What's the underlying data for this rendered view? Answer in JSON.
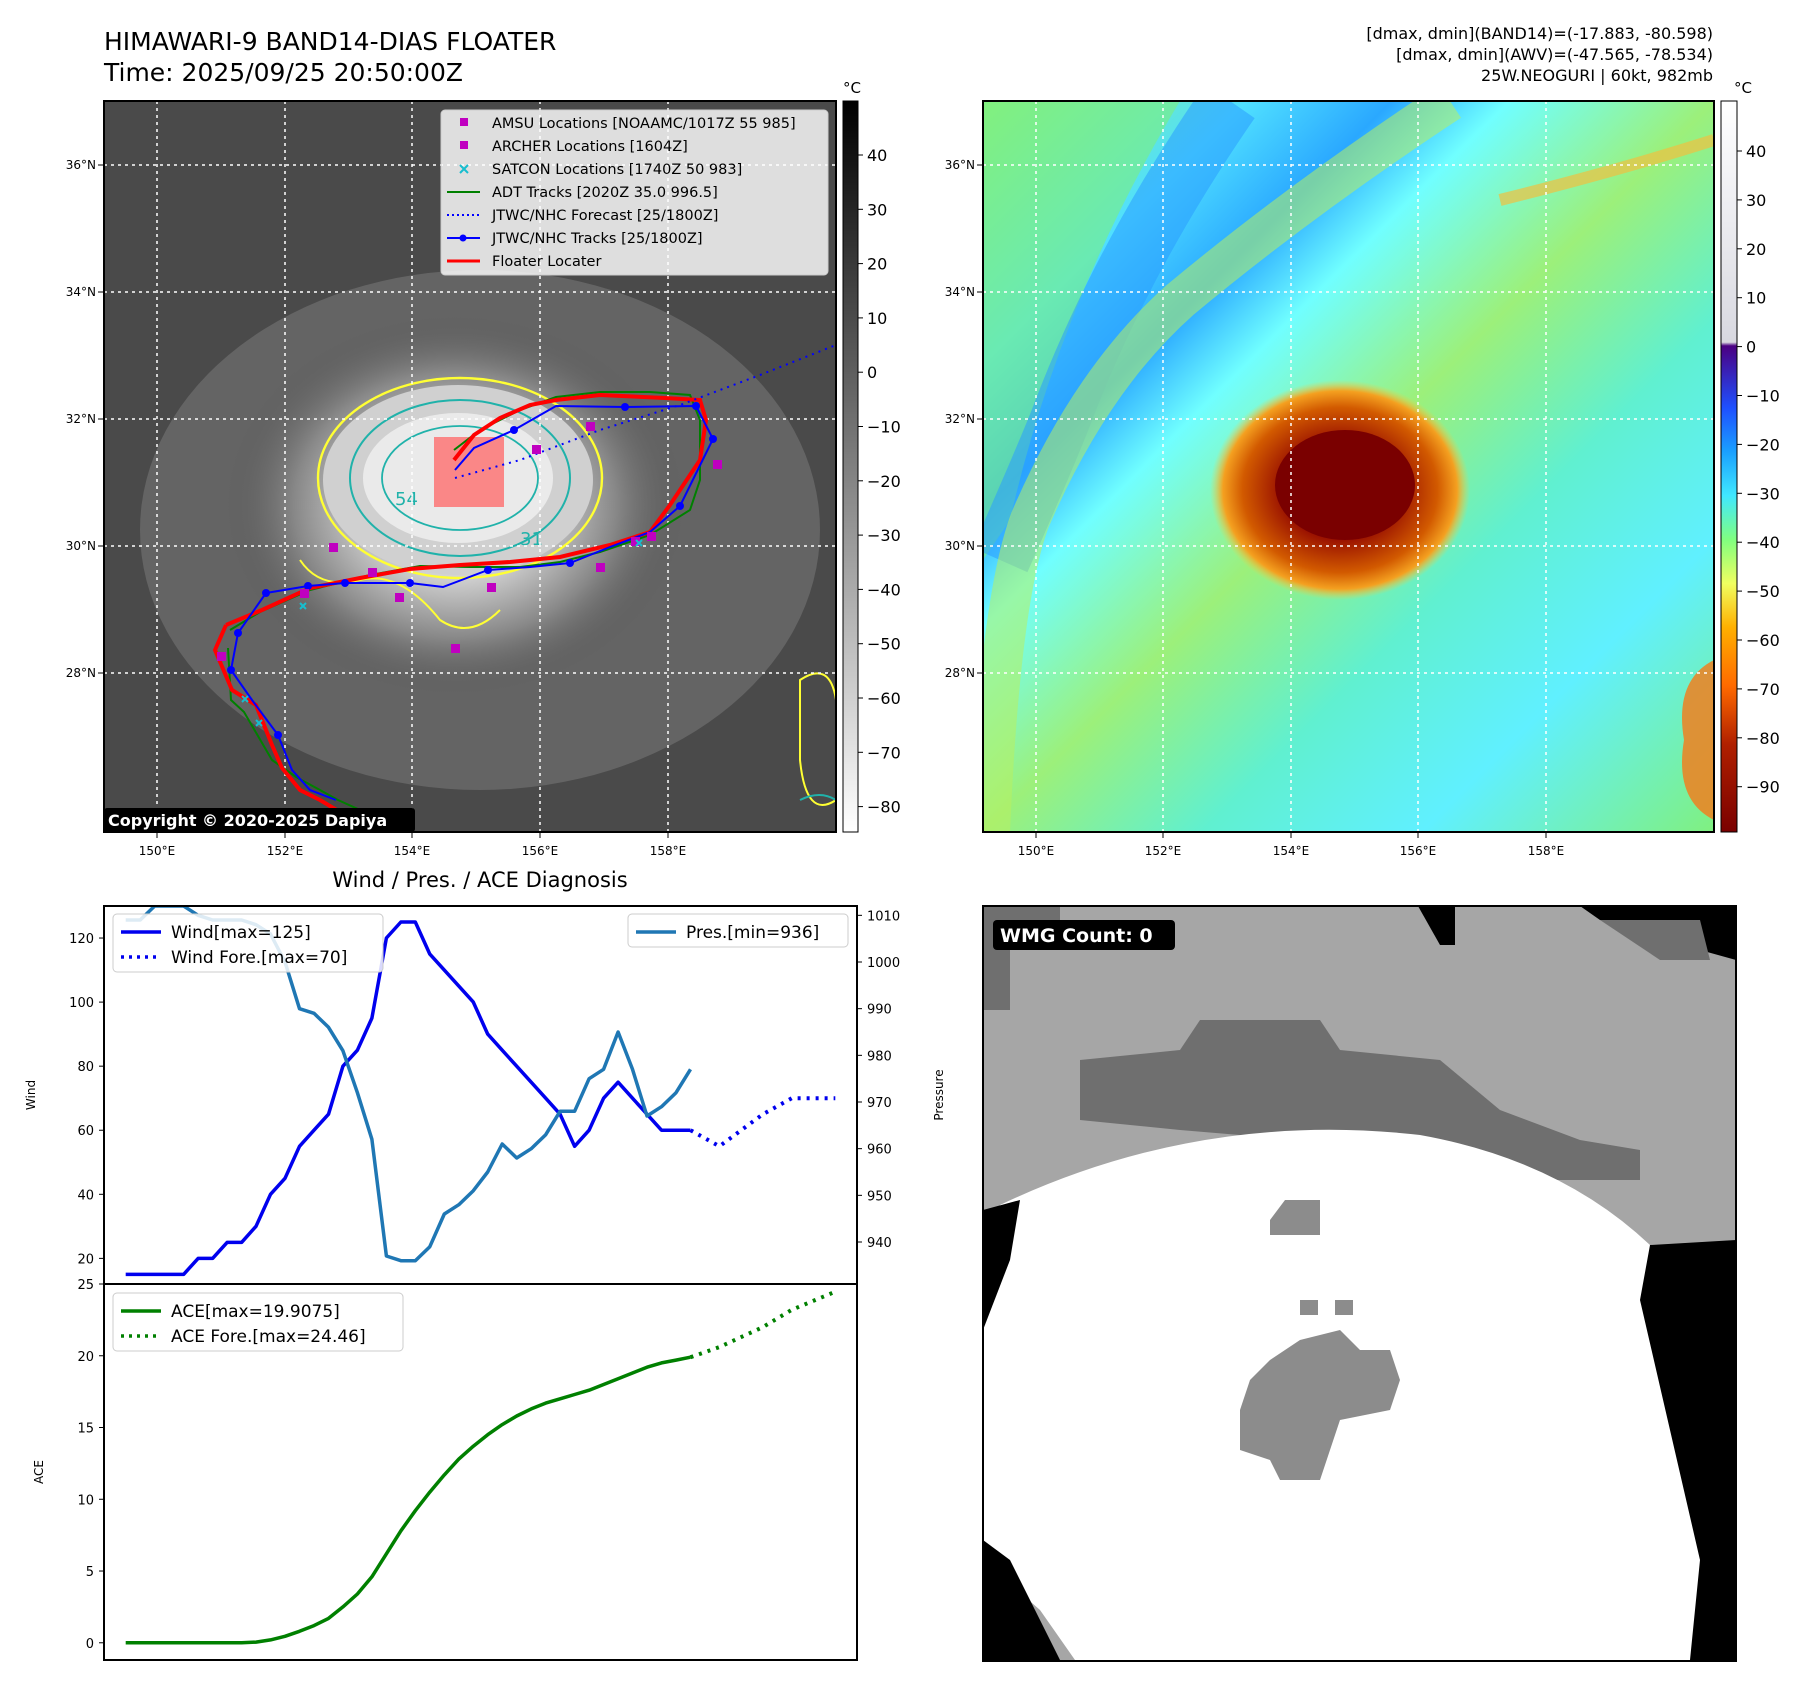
{
  "header": {
    "title": "HIMAWARI-9 BAND14-DIAS FLOATER",
    "time": "Time: 2025/09/25 20:50:00Z",
    "info_lines": [
      "[dmax, dmin](BAND14)=(-17.883, -80.598)",
      "[dmax, dmin](AWV)=(-47.565, -78.534)",
      "25W.NEOGURI | 60kt, 982mb"
    ]
  },
  "map": {
    "lat_labels": [
      "36°N",
      "34°N",
      "32°N",
      "30°N",
      "28°N"
    ],
    "lon_labels": [
      "150°E",
      "152°E",
      "154°E",
      "156°E",
      "158°E"
    ],
    "copyright": "Copyright © 2020-2025 Dapiya",
    "legend": [
      {
        "label": "AMSU Locations [NOAAMC/1017Z 55 985]",
        "marker": "square",
        "color": "#c000c0"
      },
      {
        "label": "ARCHER Locations [1604Z]",
        "marker": "square",
        "color": "#c000c0"
      },
      {
        "label": "SATCON Locations [1740Z 50 983]",
        "marker": "x",
        "color": "#17becf"
      },
      {
        "label": "ADT Tracks [2020Z 35.0 996.5]",
        "marker": "line",
        "color": "#008000"
      },
      {
        "label": "JTWC/NHC Forecast [25/1800Z]",
        "marker": "dotted",
        "color": "#0000ff"
      },
      {
        "label": "JTWC/NHC Tracks [25/1800Z]",
        "marker": "line-dot",
        "color": "#0000ff"
      },
      {
        "label": "Floater Locater",
        "marker": "line",
        "color": "#ff0000"
      }
    ],
    "contour_labels": [
      "54",
      "31"
    ]
  },
  "colorbars": {
    "unit": "°C",
    "left_ticks": [
      "40",
      "30",
      "20",
      "10",
      "0",
      "−10",
      "−20",
      "−30",
      "−40",
      "−50",
      "−60",
      "−70",
      "−80"
    ],
    "right_ticks": [
      "40",
      "30",
      "20",
      "10",
      "0",
      "−10",
      "−20",
      "−30",
      "−40",
      "−50",
      "−60",
      "−70",
      "−80",
      "−90"
    ]
  },
  "wmg": {
    "label": "WMG Count: 0"
  },
  "colors": {
    "wind": "#0000ee",
    "pressure": "#1f77b4",
    "ace": "#008000",
    "track_red": "#ff0000"
  },
  "chart_data": [
    {
      "type": "line",
      "title": "Wind / Pres. / ACE Diagnosis",
      "ylabel": "Wind",
      "ylabel_right": "Pressure",
      "ylim": [
        12,
        130
      ],
      "ylim_right": [
        931,
        1012
      ],
      "yticks": [
        20,
        40,
        60,
        80,
        100,
        120
      ],
      "yticks_right": [
        940,
        950,
        960,
        970,
        980,
        990,
        1000,
        1010
      ],
      "series": [
        {
          "name": "Wind[max=125]",
          "axis": "left",
          "style": "solid",
          "x": [
            0,
            1,
            2,
            3,
            4,
            5,
            6,
            7,
            8,
            9,
            10,
            11,
            12,
            13,
            14,
            15,
            16,
            17,
            18,
            19,
            20,
            21,
            22,
            23,
            24,
            25,
            26,
            27,
            28,
            29,
            30,
            31,
            32,
            33,
            34,
            35,
            36,
            37,
            38,
            39
          ],
          "values": [
            15,
            15,
            15,
            15,
            15,
            20,
            20,
            25,
            25,
            30,
            40,
            45,
            55,
            60,
            65,
            80,
            85,
            95,
            120,
            125,
            125,
            115,
            110,
            105,
            100,
            90,
            85,
            80,
            75,
            70,
            65,
            55,
            60,
            70,
            75,
            70,
            65,
            60,
            60,
            60
          ]
        },
        {
          "name": "Wind Fore.[max=70]",
          "axis": "left",
          "style": "dotted",
          "x": [
            39,
            41,
            44,
            46,
            49
          ],
          "values": [
            60,
            55,
            65,
            70,
            70
          ]
        },
        {
          "name": "Pres.[min=936]",
          "axis": "right",
          "style": "solid",
          "x": [
            0,
            1,
            2,
            3,
            4,
            5,
            6,
            7,
            8,
            9,
            10,
            11,
            12,
            13,
            14,
            15,
            16,
            17,
            18,
            19,
            20,
            21,
            22,
            23,
            24,
            25,
            26,
            27,
            28,
            29,
            30,
            31,
            32,
            33,
            34,
            35,
            36,
            37,
            38,
            39
          ],
          "values": [
            1009,
            1009,
            1012,
            1012,
            1012,
            1010,
            1009,
            1009,
            1009,
            1008,
            1006,
            1000,
            990,
            989,
            986,
            981,
            972,
            962,
            937,
            936,
            936,
            939,
            946,
            948,
            951,
            955,
            961,
            958,
            960,
            963,
            968,
            968,
            975,
            977,
            985,
            977,
            967,
            969,
            972,
            977
          ]
        }
      ]
    },
    {
      "type": "line",
      "ylabel": "ACE",
      "ylim": [
        -1.2,
        25
      ],
      "yticks": [
        0,
        5,
        10,
        15,
        20,
        25
      ],
      "series": [
        {
          "name": "ACE[max=19.9075]",
          "style": "solid",
          "x": [
            0,
            1,
            2,
            3,
            4,
            5,
            6,
            7,
            8,
            9,
            10,
            11,
            12,
            13,
            14,
            15,
            16,
            17,
            18,
            19,
            20,
            21,
            22,
            23,
            24,
            25,
            26,
            27,
            28,
            29,
            30,
            31,
            32,
            33,
            34,
            35,
            36,
            37,
            38,
            39
          ],
          "values": [
            0,
            0,
            0,
            0,
            0,
            0,
            0,
            0,
            0,
            0.05,
            0.2,
            0.45,
            0.8,
            1.2,
            1.7,
            2.5,
            3.4,
            4.6,
            6.2,
            7.8,
            9.2,
            10.5,
            11.7,
            12.8,
            13.7,
            14.5,
            15.2,
            15.8,
            16.3,
            16.7,
            17.0,
            17.3,
            17.6,
            18.0,
            18.4,
            18.8,
            19.2,
            19.5,
            19.7,
            19.9
          ]
        },
        {
          "name": "ACE Fore.[max=24.46]",
          "style": "dotted",
          "x": [
            39,
            41,
            44,
            46,
            49
          ],
          "values": [
            19.9,
            20.6,
            22.0,
            23.2,
            24.46
          ]
        }
      ]
    }
  ]
}
